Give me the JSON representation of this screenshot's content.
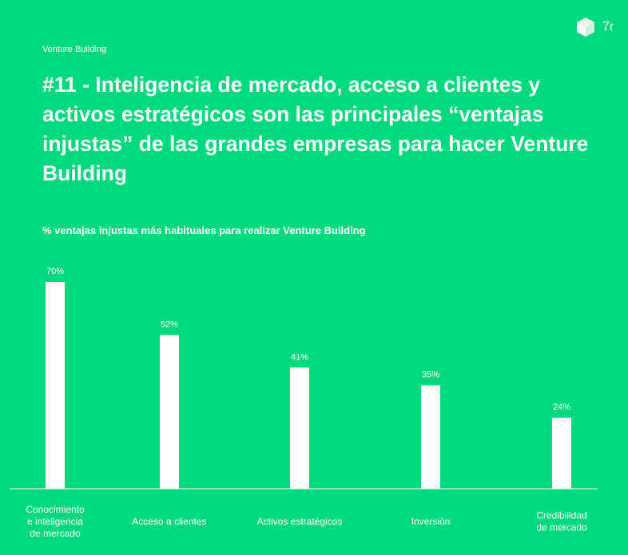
{
  "header": {
    "section_label": "Venture Building",
    "brand": "7r",
    "logo_icon": "hexagon-logo-icon",
    "headline": "#11 - Inteligencia de mercado, acceso a clientes y activos estratégicos son las principales “ventajas injustas” de las grandes empresas para hacer Venture Building"
  },
  "colors": {
    "background": "#00D97E",
    "bars": "#FFFFFF",
    "text": "#FFFFFF"
  },
  "chart_data": {
    "type": "bar",
    "title": "% ventajas injustas más habituales para realizar Venture Building",
    "categories": [
      [
        "Conocimiento",
        "e inteligencia",
        "de mercado"
      ],
      [
        "Acceso a clientes"
      ],
      [
        "Activos estratégicos"
      ],
      [
        "Inversión"
      ],
      [
        "Credibilidad",
        "de mercado"
      ]
    ],
    "values": [
      70,
      52,
      41,
      35,
      24
    ],
    "value_labels": [
      "70%",
      "52%",
      "41%",
      "35%",
      "24%"
    ],
    "unit": "%",
    "ylim": [
      0,
      70
    ],
    "grid": false,
    "legend": "none"
  }
}
